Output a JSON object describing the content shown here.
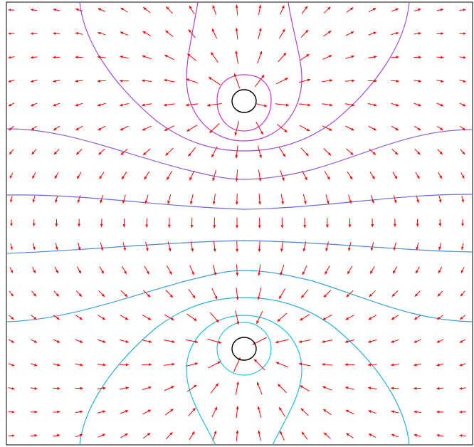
{
  "figure": {
    "description": "",
    "background": "#ffffff",
    "border_color": "#000000"
  },
  "charges": [
    {
      "id": "top-charge",
      "sign": "positive",
      "outline_color": "#000000"
    },
    {
      "id": "bottom-charge",
      "sign": "negative",
      "outline_color": "#000000"
    }
  ],
  "field_arrows": {
    "color": "#ff0000",
    "grid_columns": 21,
    "grid_rows": 19
  },
  "equipotential_contours": [
    {
      "id": "contour-top-inner",
      "color": "#cc33cc"
    },
    {
      "id": "contour-top-mid",
      "color": "#b040d0"
    },
    {
      "id": "contour-top-outer",
      "color": "#a050e0"
    },
    {
      "id": "contour-upper-band",
      "color": "#9060e0"
    },
    {
      "id": "contour-center",
      "color": "#6a6ae8"
    },
    {
      "id": "contour-lower-mid",
      "color": "#4a86e0"
    },
    {
      "id": "contour-lower-band",
      "color": "#3aa0e0"
    },
    {
      "id": "contour-bottom-outer",
      "color": "#2ab0e0"
    },
    {
      "id": "contour-bottom-mid",
      "color": "#20c0e0"
    },
    {
      "id": "contour-bottom-inner",
      "color": "#20c8e0"
    }
  ]
}
